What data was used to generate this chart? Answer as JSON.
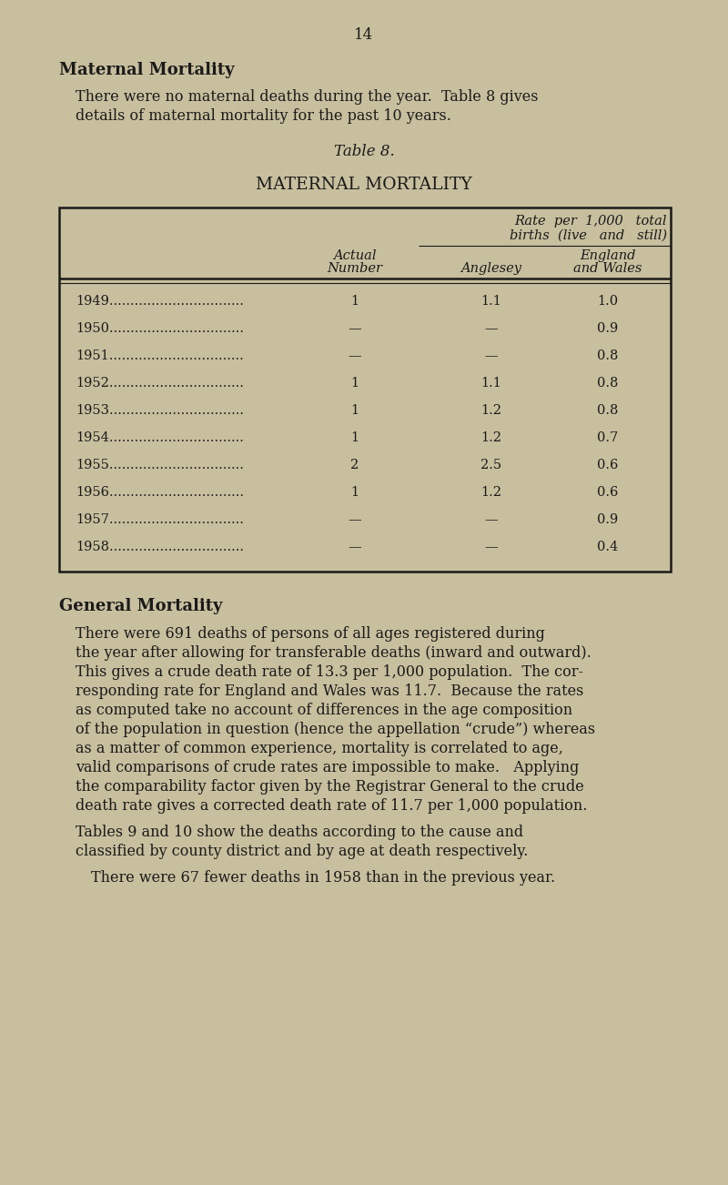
{
  "page_number": "14",
  "bg_color": "#c8bf9e",
  "text_color": "#1a1a1a",
  "section1_title": "Maternal Mortality",
  "table_label": "Table 8.",
  "table_title": "MATERNAL MORTALITY",
  "table_rows": [
    {
      "year": "1949",
      "dots": "................................",
      "actual": "1",
      "anglesey": "1.1",
      "ew": "1.0"
    },
    {
      "year": "1950",
      "dots": "................................",
      "actual": "—",
      "anglesey": "—",
      "ew": "0.9"
    },
    {
      "year": "1951",
      "dots": "................................",
      "actual": "—",
      "anglesey": "—",
      "ew": "0.8"
    },
    {
      "year": "1952",
      "dots": "................................",
      "actual": "1",
      "anglesey": "1.1",
      "ew": "0.8"
    },
    {
      "year": "1953",
      "dots": "................................",
      "actual": "1",
      "anglesey": "1.2",
      "ew": "0.8"
    },
    {
      "year": "1954",
      "dots": "................................",
      "actual": "1",
      "anglesey": "1.2",
      "ew": "0.7"
    },
    {
      "year": "1955",
      "dots": "................................",
      "actual": "2",
      "anglesey": "2.5",
      "ew": "0.6"
    },
    {
      "year": "1956",
      "dots": "................................",
      "actual": "1",
      "anglesey": "1.2",
      "ew": "0.6"
    },
    {
      "year": "1957",
      "dots": "................................",
      "actual": "—",
      "anglesey": "—",
      "ew": "0.9"
    },
    {
      "year": "1958",
      "dots": "................................",
      "actual": "—",
      "anglesey": "—",
      "ew": "0.4"
    }
  ],
  "section2_title": "General Mortality",
  "para1_lines": [
    "There were no maternal deaths during the year.  Table 8 gives",
    "details of maternal mortality for the past 10 years."
  ],
  "para2_lines": [
    "There were 691 deaths of persons of all ages registered during",
    "the year after allowing for transferable deaths (inward and outward).",
    "This gives a crude death rate of 13.3 per 1,000 population.  The cor-",
    "responding rate for England and Wales was 11.7.  Because the rates",
    "as computed take no account of differences in the age composition",
    "of the population in question (hence the appellation “crude”) whereas",
    "as a matter of common experience, mortality is correlated to age,",
    "valid comparisons of crude rates are impossible to make.   Applying",
    "the comparability factor given by the Registrar General to the crude",
    "death rate gives a corrected death rate of 11.7 per 1,000 population."
  ],
  "para3_lines": [
    "Tables 9 and 10 show the deaths according to the cause and",
    "classified by county district and by age at death respectively."
  ],
  "para4": "There were 67 fewer deaths in 1958 than in the previous year."
}
